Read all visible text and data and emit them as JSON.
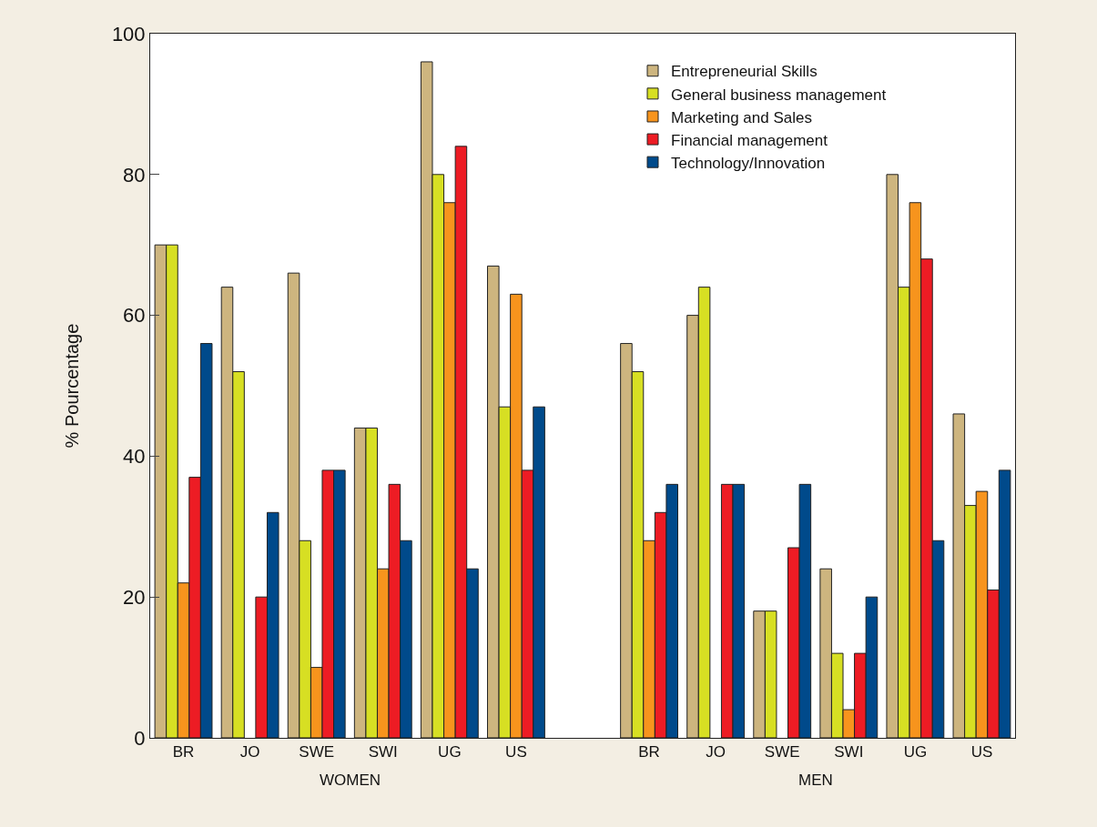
{
  "chart_data": {
    "type": "bar",
    "ylabel": "% Pourcentage",
    "categories": [
      "BR",
      "JO",
      "SWE",
      "SWI",
      "UG",
      "US",
      null,
      "BR",
      "JO",
      "SWE",
      "SWI",
      "UG",
      "US"
    ],
    "series": [
      {
        "name": "Entrepreneurial Skills",
        "color": "#cdb57f",
        "values": [
          70,
          64,
          66,
          44,
          96,
          67,
          null,
          56,
          60,
          18,
          24,
          80,
          46
        ]
      },
      {
        "name": "General business management",
        "color": "#d7df23",
        "values": [
          70,
          52,
          28,
          44,
          80,
          47,
          null,
          52,
          64,
          18,
          12,
          64,
          33
        ]
      },
      {
        "name": "Marketing and Sales",
        "color": "#f7941d",
        "values": [
          22,
          null,
          10,
          24,
          76,
          63,
          null,
          28,
          null,
          null,
          4,
          76,
          35
        ]
      },
      {
        "name": "Financial management",
        "color": "#ed1c24",
        "values": [
          37,
          20,
          38,
          36,
          84,
          38,
          null,
          32,
          36,
          27,
          12,
          68,
          21
        ]
      },
      {
        "name": "Technology/Innovation",
        "color": "#004a8b",
        "values": [
          56,
          32,
          38,
          28,
          24,
          47,
          null,
          36,
          36,
          36,
          20,
          28,
          38
        ]
      }
    ],
    "annotations": [
      "WOMEN",
      "MEN"
    ],
    "ylim": [
      0,
      100
    ],
    "yticks": [
      0,
      20,
      40,
      60,
      80,
      100
    ],
    "grid": false,
    "legend": "top right"
  }
}
